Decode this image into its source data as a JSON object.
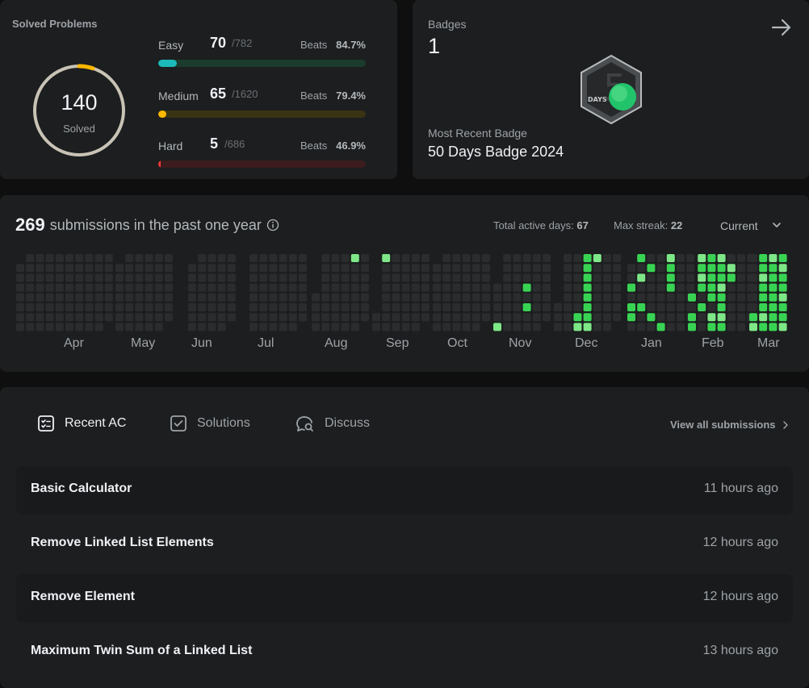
{
  "solved": {
    "title": "Solved Problems",
    "total": "140",
    "label": "Solved",
    "difficulties": [
      {
        "name": "Easy",
        "solved": "70",
        "total": "/782",
        "beats_label": "Beats",
        "beats": "84.7%",
        "color": "#1cbaba",
        "track": "#1b3b2d",
        "fraction": 0.0895
      },
      {
        "name": "Medium",
        "solved": "65",
        "total": "/1620",
        "beats_label": "Beats",
        "beats": "79.4%",
        "color": "#ffb700",
        "track": "#3a3314",
        "fraction": 0.0401
      },
      {
        "name": "Hard",
        "solved": "5",
        "total": "/686",
        "beats_label": "Beats",
        "beats": "46.9%",
        "color": "#f63737",
        "track": "#3c1c1e",
        "fraction": 0.0073
      }
    ]
  },
  "badges": {
    "label": "Badges",
    "count": "1",
    "arrow_icon": "arrow-right-icon",
    "recent_label": "Most Recent Badge",
    "recent_name": "50 Days Badge 2024",
    "badge_text": "DAYS",
    "badge_digit": "5"
  },
  "heatmap": {
    "count": "269",
    "text": "submissions in the past one year",
    "active_label": "Total active days:",
    "active_value": "67",
    "streak_label": "Max streak:",
    "streak_value": "22",
    "range": "Current",
    "months": [
      "Apr",
      "May",
      "Jun",
      "Jul",
      "Aug",
      "Sep",
      "Oct",
      "Nov",
      "Dec",
      "Jan",
      "Feb",
      "Mar"
    ],
    "colors": {
      "empty": "#2a2c2e",
      "l1": "#0e4429",
      "l2": "#26a641",
      "l3": "#39d353",
      "l4": "#7ee787"
    }
  },
  "recent": {
    "tabs": [
      {
        "label": "Recent AC",
        "icon": "checklist-icon"
      },
      {
        "label": "Solutions",
        "icon": "check-square-icon"
      },
      {
        "label": "Discuss",
        "icon": "discuss-icon"
      }
    ],
    "view_all": "View all submissions",
    "items": [
      {
        "title": "Basic Calculator",
        "time": "11 hours ago"
      },
      {
        "title": "Remove Linked List Elements",
        "time": "12 hours ago"
      },
      {
        "title": "Remove Element",
        "time": "12 hours ago"
      },
      {
        "title": "Maximum Twin Sum of a Linked List",
        "time": "13 hours ago"
      }
    ]
  }
}
